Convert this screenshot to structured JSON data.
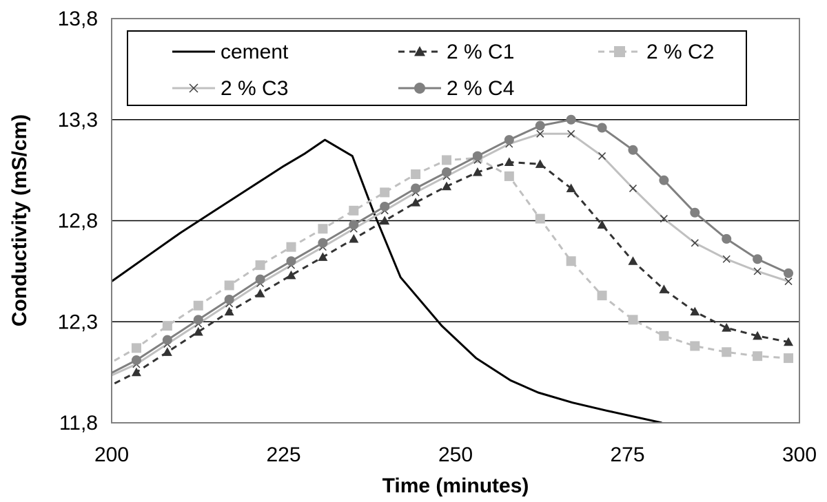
{
  "chart_data": {
    "type": "line",
    "title": "",
    "xlabel": "Time (minutes)",
    "ylabel": "Conductivity (mS/cm)",
    "xlim": [
      200,
      300
    ],
    "ylim": [
      11.8,
      13.8
    ],
    "x_ticks": [
      "200",
      "225",
      "250",
      "275",
      "300"
    ],
    "y_ticks": [
      "11,8",
      "12,3",
      "12,8",
      "13,3",
      "13,8"
    ],
    "grid": "horizontal",
    "legend_position": "top",
    "series": [
      {
        "name": "cement",
        "color": "#000000",
        "dash": "solid",
        "marker": "none",
        "x": [
          200,
          205,
          210,
          215,
          220,
          225,
          228,
          231,
          235,
          238,
          242,
          248,
          253,
          258,
          262,
          267,
          272,
          280
        ],
        "y": [
          12.5,
          12.62,
          12.74,
          12.85,
          12.96,
          13.07,
          13.13,
          13.2,
          13.12,
          12.85,
          12.52,
          12.28,
          12.12,
          12.01,
          11.95,
          11.9,
          11.86,
          11.8
        ]
      },
      {
        "name": "2 % C1",
        "color": "#333333",
        "dash": "dashed",
        "marker": "triangle",
        "x": [
          199,
          203.6,
          208.1,
          212.6,
          217.1,
          221.6,
          226.1,
          230.7,
          235.2,
          239.7,
          244.2,
          248.7,
          253.2,
          257.8,
          262.3,
          266.8,
          271.3,
          275.8,
          280.3,
          284.8,
          289.4,
          293.9,
          298.4
        ],
        "y": [
          11.97,
          12.05,
          12.15,
          12.25,
          12.35,
          12.44,
          12.53,
          12.62,
          12.71,
          12.8,
          12.89,
          12.97,
          13.04,
          13.09,
          13.08,
          12.96,
          12.78,
          12.6,
          12.46,
          12.35,
          12.27,
          12.23,
          12.2
        ]
      },
      {
        "name": "2 % C2",
        "color": "#c0c0c0",
        "dash": "dashed",
        "marker": "square",
        "x": [
          199,
          203.6,
          208.1,
          212.6,
          217.1,
          221.6,
          226.1,
          230.7,
          235.2,
          239.7,
          244.2,
          248.7,
          253.2,
          257.8,
          262.3,
          266.8,
          271.3,
          275.8,
          280.3,
          284.8,
          289.4,
          293.9,
          298.4
        ],
        "y": [
          12.08,
          12.17,
          12.28,
          12.38,
          12.48,
          12.58,
          12.67,
          12.76,
          12.85,
          12.94,
          13.03,
          13.1,
          13.11,
          13.02,
          12.81,
          12.6,
          12.43,
          12.31,
          12.23,
          12.18,
          12.15,
          12.13,
          12.12
        ]
      },
      {
        "name": "2 % C3",
        "color": "#c0c0c0",
        "dash": "solid",
        "marker": "x",
        "x": [
          199,
          203.6,
          208.1,
          212.6,
          217.1,
          221.6,
          226.1,
          230.7,
          235.2,
          239.7,
          244.2,
          248.7,
          253.2,
          257.8,
          262.3,
          266.8,
          271.3,
          275.8,
          280.3,
          284.8,
          289.4,
          293.9,
          298.4
        ],
        "y": [
          12.02,
          12.09,
          12.19,
          12.29,
          12.39,
          12.49,
          12.58,
          12.67,
          12.76,
          12.85,
          12.94,
          13.02,
          13.1,
          13.18,
          13.23,
          13.23,
          13.12,
          12.96,
          12.81,
          12.69,
          12.61,
          12.55,
          12.5
        ]
      },
      {
        "name": "2 % C4",
        "color": "#808080",
        "dash": "solid",
        "marker": "circle",
        "x": [
          199,
          203.6,
          208.1,
          212.6,
          217.1,
          221.6,
          226.1,
          230.7,
          235.2,
          239.7,
          244.2,
          248.7,
          253.2,
          257.8,
          262.3,
          266.8,
          271.3,
          275.8,
          280.3,
          284.8,
          289.4,
          293.9,
          298.4
        ],
        "y": [
          12.03,
          12.11,
          12.21,
          12.31,
          12.41,
          12.51,
          12.6,
          12.69,
          12.78,
          12.87,
          12.96,
          13.04,
          13.12,
          13.2,
          13.27,
          13.3,
          13.26,
          13.15,
          13.0,
          12.84,
          12.71,
          12.61,
          12.54
        ]
      }
    ]
  }
}
